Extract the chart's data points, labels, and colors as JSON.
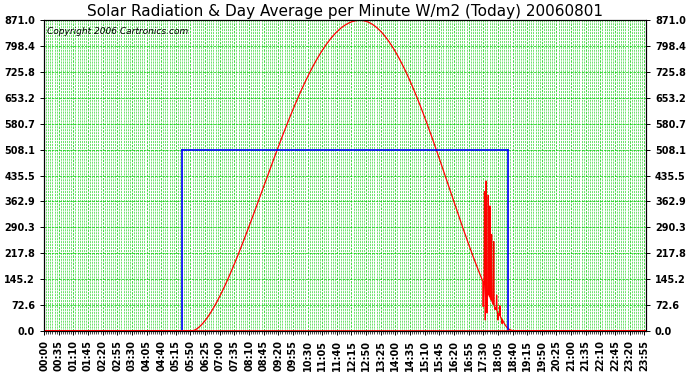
{
  "title": "Solar Radiation & Day Average per Minute W/m2 (Today) 20060801",
  "copyright": "Copyright 2006 Cartronics.com",
  "bg_color": "#ffffff",
  "plot_bg_color": "#ffffff",
  "grid_color": "#00cc00",
  "red_color": "#ff0000",
  "blue_color": "#0000ff",
  "yticks": [
    0.0,
    72.6,
    145.2,
    217.8,
    290.3,
    362.9,
    435.5,
    508.1,
    580.7,
    653.2,
    725.8,
    798.4,
    871.0
  ],
  "ymax": 871.0,
  "ymin": 0.0,
  "xmin": 0,
  "xmax": 1439,
  "sunrise_min": 355,
  "sunset_min": 1125,
  "peak_min": 755,
  "peak_val": 871.0,
  "day_avg": 508.1,
  "day_avg_start": 330,
  "day_avg_end": 1110,
  "xtick_labels": [
    "00:00",
    "00:35",
    "01:10",
    "01:45",
    "02:20",
    "02:55",
    "03:30",
    "04:05",
    "04:40",
    "05:15",
    "05:50",
    "06:25",
    "07:00",
    "07:35",
    "08:10",
    "08:45",
    "09:20",
    "09:55",
    "10:30",
    "11:05",
    "11:40",
    "12:15",
    "12:50",
    "13:25",
    "14:00",
    "14:35",
    "15:10",
    "15:45",
    "16:20",
    "16:55",
    "17:30",
    "18:05",
    "18:40",
    "19:15",
    "19:50",
    "20:25",
    "21:00",
    "21:35",
    "22:10",
    "22:45",
    "23:20",
    "23:55"
  ],
  "title_fontsize": 11,
  "label_fontsize": 7,
  "copyright_fontsize": 6.5
}
